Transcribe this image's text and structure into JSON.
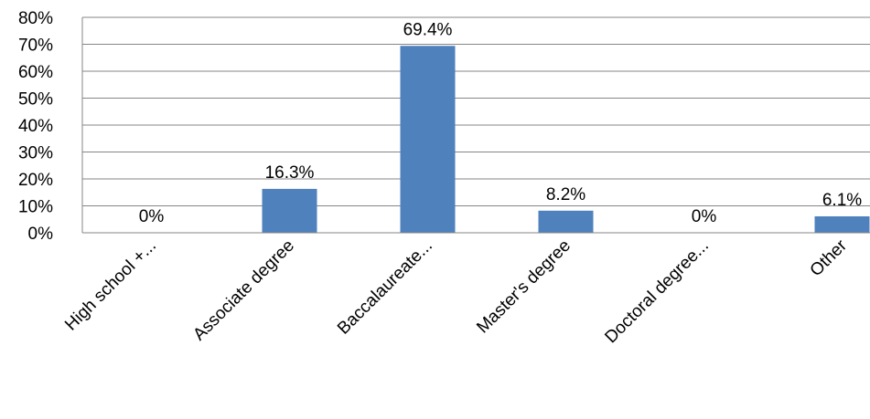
{
  "chart_data": {
    "type": "bar",
    "categories": [
      "High school +...",
      "Associate degree",
      "Baccalaureate...",
      "Master's degree",
      "Doctoral degree...",
      "Other"
    ],
    "values": [
      0,
      16.3,
      69.4,
      8.2,
      0,
      6.1
    ],
    "data_labels": [
      "0%",
      "16.3%",
      "69.4%",
      "8.2%",
      "0%",
      "6.1%"
    ],
    "ylim": [
      0,
      80
    ],
    "yticks": [
      0,
      10,
      20,
      30,
      40,
      50,
      60,
      70,
      80
    ],
    "ytick_labels": [
      "0%",
      "10%",
      "20%",
      "30%",
      "40%",
      "50%",
      "60%",
      "70%",
      "80%"
    ],
    "grid": true,
    "bar_color": "#4F81BD"
  }
}
